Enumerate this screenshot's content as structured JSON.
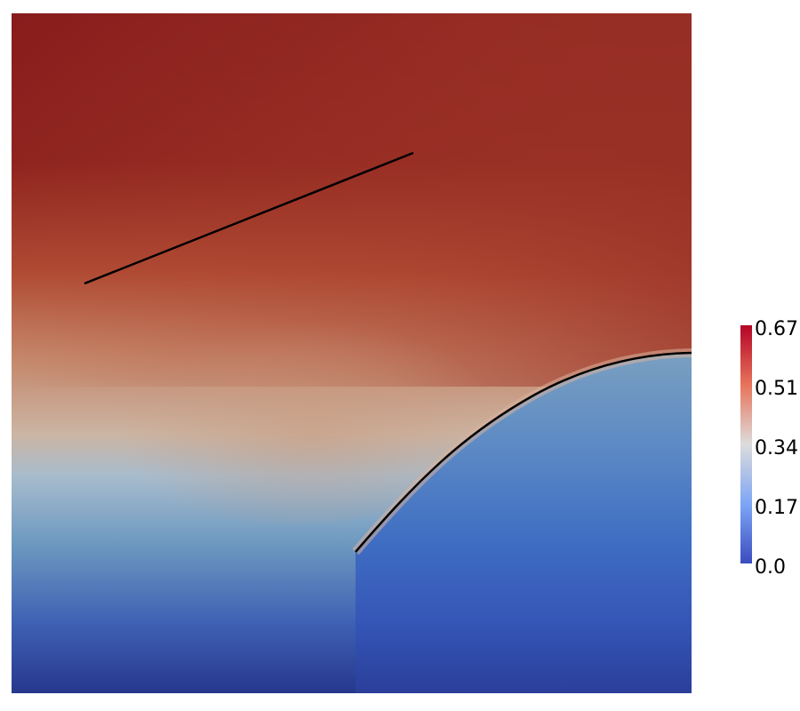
{
  "field_plot": {
    "colorbar": {
      "colormap": "cool-to-warm",
      "min_color": "#3b4cc0",
      "mid_color": "#dddcdc",
      "max_color": "#b40426",
      "ticks": [
        "0.67",
        "0.51",
        "0.34",
        "0.17",
        "0.0"
      ]
    },
    "domain_colors": {
      "top": "#881c1c",
      "upper_mid": "#b04a33",
      "middle": "#c9a48d",
      "lower_mid": "#6d99c0",
      "bottom": "#26388c"
    },
    "cracks": [
      {
        "name": "straight-crack",
        "shape": "line"
      },
      {
        "name": "curved-crack",
        "shape": "arc"
      }
    ]
  }
}
